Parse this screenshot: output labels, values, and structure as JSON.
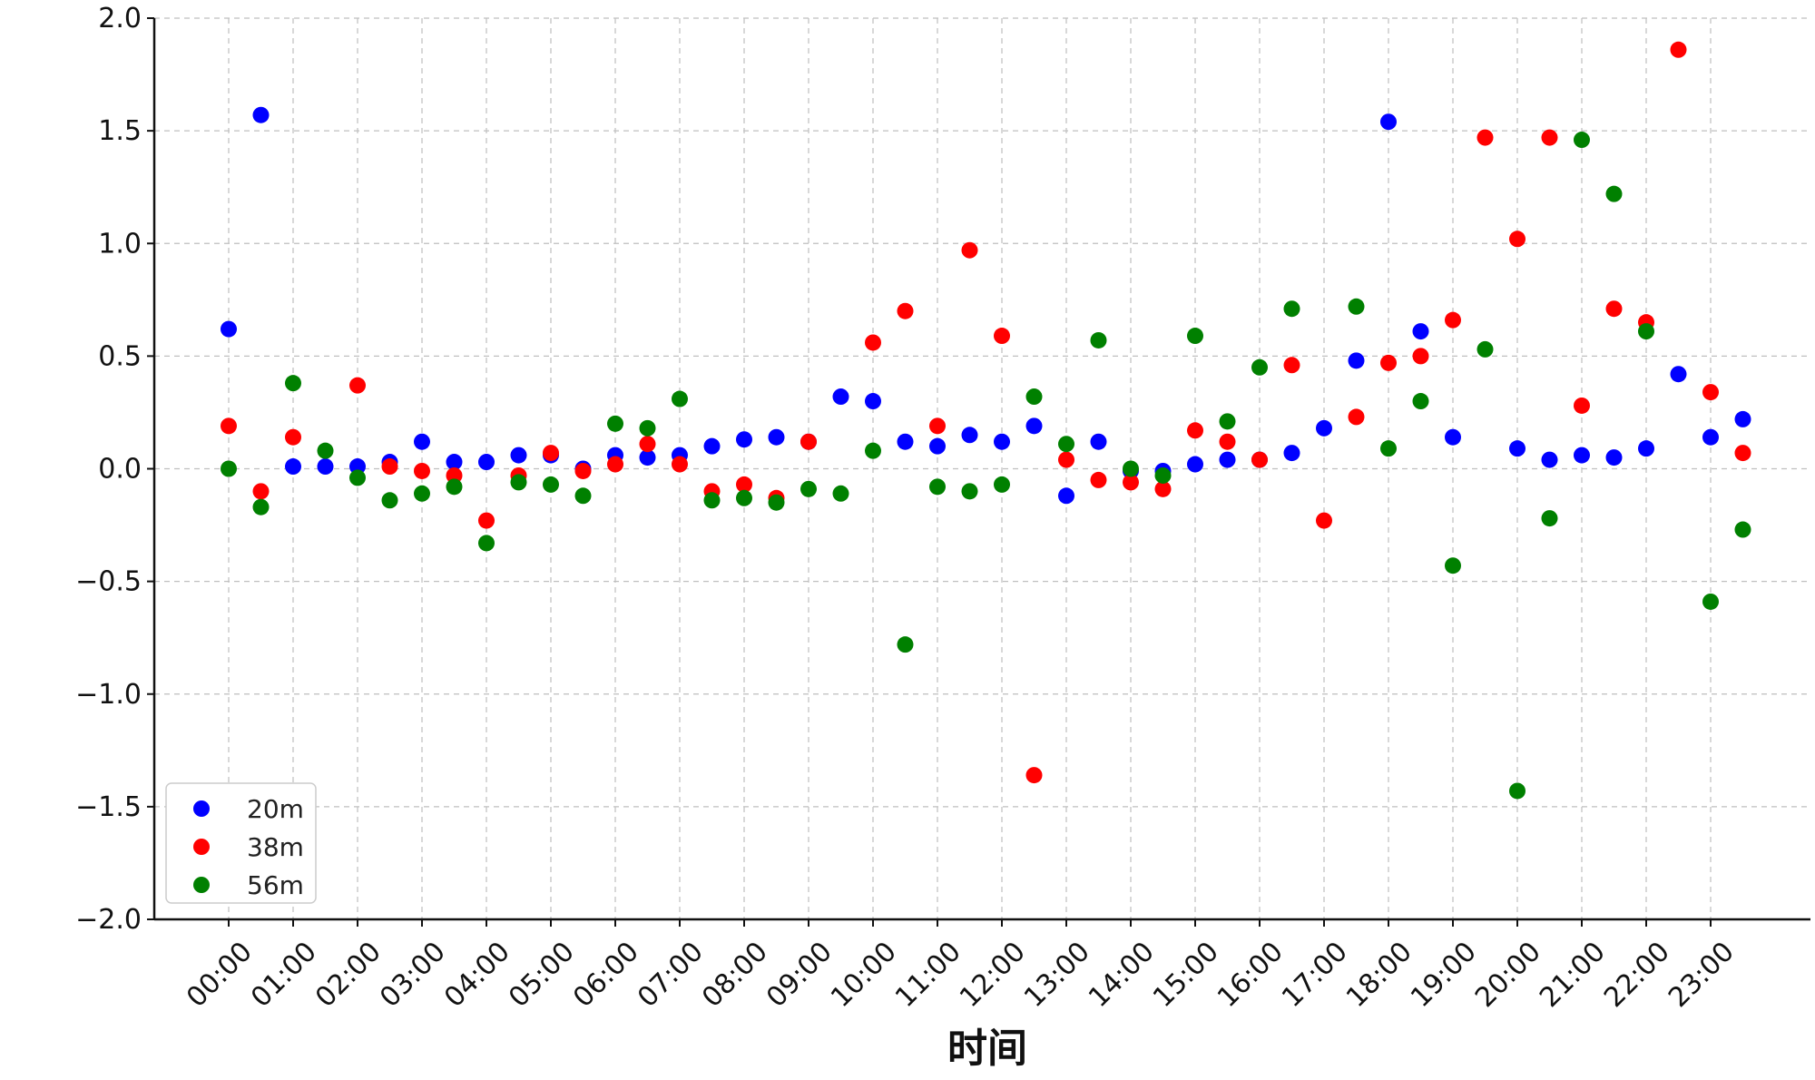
{
  "chart_data": {
    "type": "scatter",
    "xlabel": "时间",
    "ylabel": "",
    "ylim": [
      -2.0,
      2.0
    ],
    "yticks": [
      "2.0",
      "1.5",
      "1.0",
      "0.5",
      "0.0",
      "−0.5",
      "−1.0",
      "−1.5",
      "−2.0"
    ],
    "ytick_values": [
      2.0,
      1.5,
      1.0,
      0.5,
      0.0,
      -0.5,
      -1.0,
      -1.5,
      -2.0
    ],
    "xticks": [
      "00:00",
      "01:00",
      "02:00",
      "03:00",
      "04:00",
      "05:00",
      "06:00",
      "07:00",
      "08:00",
      "09:00",
      "10:00",
      "11:00",
      "12:00",
      "13:00",
      "14:00",
      "15:00",
      "16:00",
      "17:00",
      "18:00",
      "19:00",
      "20:00",
      "21:00",
      "22:00",
      "23:00"
    ],
    "x": [
      "00:00",
      "00:30",
      "01:00",
      "01:30",
      "02:00",
      "02:30",
      "03:00",
      "03:30",
      "04:00",
      "04:30",
      "05:00",
      "05:30",
      "06:00",
      "06:30",
      "07:00",
      "07:30",
      "08:00",
      "08:30",
      "09:00",
      "09:30",
      "10:00",
      "10:30",
      "11:00",
      "11:30",
      "12:00",
      "12:30",
      "13:00",
      "13:30",
      "14:00",
      "14:30",
      "15:00",
      "15:30",
      "16:00",
      "16:30",
      "17:00",
      "17:30",
      "18:00",
      "18:30",
      "19:00",
      "19:30",
      "20:00",
      "20:30",
      "21:00",
      "21:30",
      "22:00",
      "22:30",
      "23:00",
      "23:30"
    ],
    "grid": true,
    "legend_position": "lower-left",
    "series": [
      {
        "name": "20m",
        "color": "#0000ff",
        "values": [
          0.62,
          1.57,
          0.01,
          0.01,
          0.01,
          0.03,
          0.12,
          0.03,
          0.03,
          0.06,
          0.06,
          0.0,
          0.06,
          0.05,
          0.06,
          0.1,
          0.13,
          0.14,
          0.12,
          0.32,
          0.3,
          0.12,
          0.1,
          0.15,
          0.12,
          0.19,
          -0.12,
          0.12,
          -0.01,
          -0.01,
          0.02,
          0.04,
          0.04,
          0.07,
          0.18,
          0.48,
          1.54,
          0.61,
          0.14,
          null,
          0.09,
          0.04,
          0.06,
          0.05,
          0.09,
          0.42,
          0.14,
          0.22
        ]
      },
      {
        "name": "38m",
        "color": "#ff0000",
        "values": [
          0.19,
          -0.1,
          0.14,
          null,
          0.37,
          0.01,
          -0.01,
          -0.03,
          -0.23,
          -0.03,
          0.07,
          -0.01,
          0.02,
          0.11,
          0.02,
          -0.1,
          -0.07,
          -0.13,
          0.12,
          null,
          0.56,
          0.7,
          0.19,
          0.97,
          0.59,
          -1.36,
          0.04,
          -0.05,
          -0.06,
          -0.09,
          0.17,
          0.12,
          0.04,
          0.46,
          -0.23,
          0.23,
          0.47,
          0.5,
          0.66,
          1.47,
          1.02,
          1.47,
          0.28,
          0.71,
          0.65,
          1.86,
          0.34,
          0.07
        ]
      },
      {
        "name": "56m",
        "color": "#008000",
        "values": [
          0.0,
          -0.17,
          0.38,
          0.08,
          -0.04,
          -0.14,
          -0.11,
          -0.08,
          -0.33,
          -0.06,
          -0.07,
          -0.12,
          0.2,
          0.18,
          0.31,
          -0.14,
          -0.13,
          -0.15,
          -0.09,
          -0.11,
          0.08,
          -0.78,
          -0.08,
          -0.1,
          -0.07,
          0.32,
          0.11,
          0.57,
          0.0,
          -0.03,
          0.59,
          0.21,
          0.45,
          0.71,
          null,
          0.72,
          0.09,
          0.3,
          -0.43,
          0.53,
          -1.43,
          -0.22,
          1.46,
          1.22,
          0.61,
          null,
          -0.59,
          -0.27
        ]
      }
    ]
  }
}
